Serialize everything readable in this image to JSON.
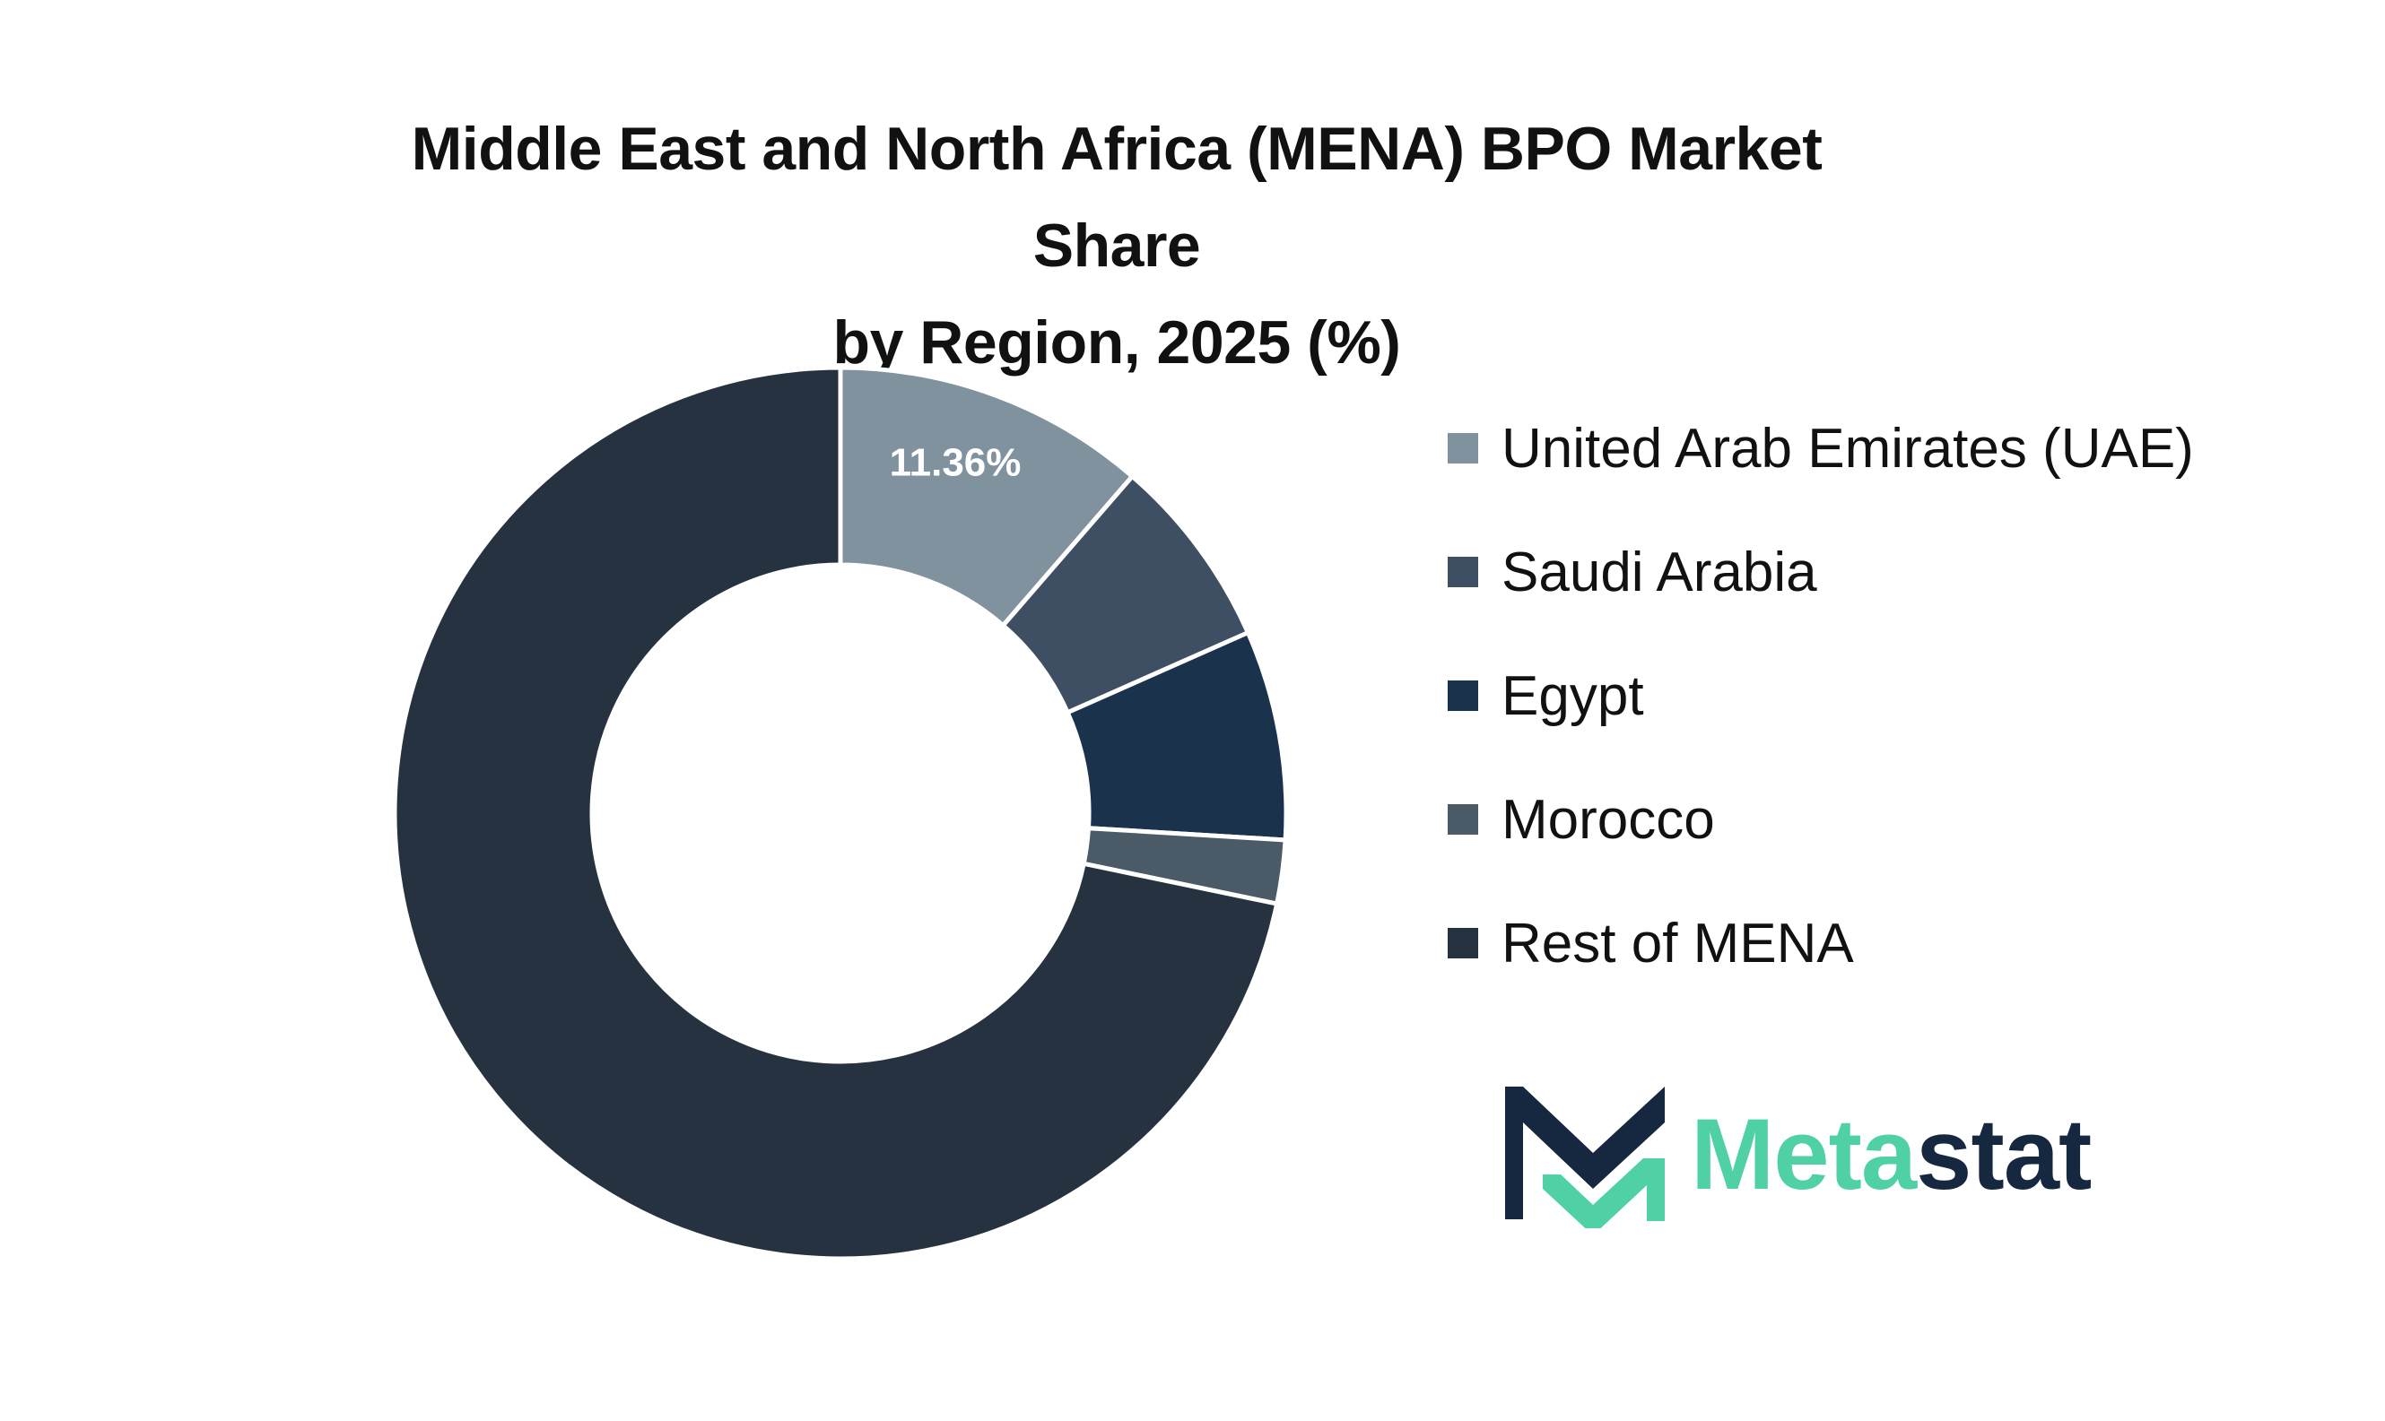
{
  "title": {
    "line1": "Middle East and North Africa (MENA) BPO Market Share",
    "line2": "by Region, 2025 (%)"
  },
  "chart_data": {
    "type": "pie",
    "style": "donut",
    "start_angle_deg": 0,
    "direction": "clockwise",
    "categories": [
      "United Arab Emirates (UAE)",
      "Saudi Arabia",
      "Egypt",
      "Morocco",
      "Rest of MENA"
    ],
    "values": [
      11.36,
      7.0,
      7.6,
      2.3,
      71.74
    ],
    "data_labels": [
      "11.36%",
      "",
      "",
      "",
      ""
    ],
    "colors": [
      "#7f929e",
      "#3e4e63",
      "#1b324d",
      "#4a5a66",
      "#26323f"
    ],
    "legend_placement": "right"
  },
  "legend": {
    "items": [
      {
        "label": "United Arab Emirates (UAE)",
        "color": "#7f929e"
      },
      {
        "label": "Saudi Arabia",
        "color": "#3e4e63"
      },
      {
        "label": "Egypt",
        "color": "#1b324d"
      },
      {
        "label": "Morocco",
        "color": "#4a5a66"
      },
      {
        "label": "Rest of MENA",
        "color": "#26323f"
      }
    ]
  },
  "logo": {
    "text_part1": "Meta",
    "text_part2": "stat",
    "color_primary": "#4fd1a5",
    "color_secondary": "#15283f"
  }
}
